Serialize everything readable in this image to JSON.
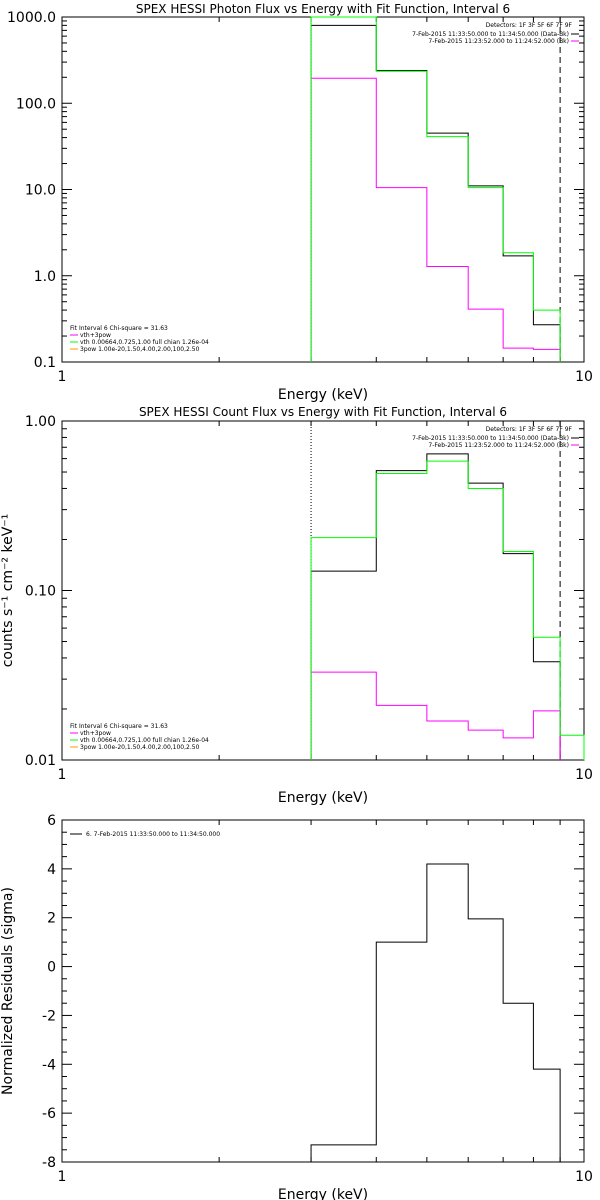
{
  "chart_data": [
    {
      "type": "line",
      "title": "SPEX HESSI Photon Flux vs Energy with Fit Function, Interval 6",
      "xlabel": "Energy (keV)",
      "ylabel": "",
      "xscale": "log",
      "yscale": "log",
      "xlim": [
        1,
        10
      ],
      "ylim": [
        0.1,
        1000
      ],
      "xtick_labels": [
        "1",
        "10"
      ],
      "ytick_labels": [
        "1000.0",
        "100.0",
        "10.0",
        "1.0",
        "0.1"
      ],
      "detectors_text": "Detectors: 1F 3F 5F 6F 7F 9F",
      "legend_right": [
        "7-Feb-2015 11:33:50.000 to 11:34:50.000 (Data-Bk)",
        "7-Feb-2015 11:23:52.000 to 11:24:52.000 (Bk)"
      ],
      "legend_left": [
        "Fit Interval 6   Chi-square = 31.63",
        "vth+3pow",
        "vth 0.00664,0.725,1.00  full chian 1.26e-04",
        "3pow 1.00e-20,1.50,4.00,2.00,100,2.50"
      ],
      "fit_range": [
        3,
        9
      ],
      "series": [
        {
          "name": "Data-Bk",
          "color": "#000000",
          "edges": [
            3,
            4,
            5,
            6,
            7,
            8,
            9
          ],
          "values": [
            800,
            240,
            45,
            11,
            1.7,
            0.27
          ]
        },
        {
          "name": "Bk",
          "color": "#ff00ff",
          "edges": [
            3,
            4,
            5,
            6,
            7,
            8,
            9
          ],
          "values": [
            195,
            10.5,
            1.28,
            0.41,
            0.145,
            0.14
          ]
        },
        {
          "name": "vth+3pow",
          "color": "#00ff00",
          "edges": [
            3,
            4,
            5,
            6,
            7,
            8,
            9
          ],
          "values": [
            1000,
            235,
            41,
            10.5,
            1.85,
            0.4
          ]
        }
      ]
    },
    {
      "type": "line",
      "title": "SPEX HESSI Count Flux vs Energy with Fit Function, Interval 6",
      "xlabel": "Energy (keV)",
      "ylabel": "counts s⁻¹ cm⁻² keV⁻¹",
      "xscale": "log",
      "yscale": "log",
      "xlim": [
        1,
        10
      ],
      "ylim": [
        0.01,
        1.0
      ],
      "xtick_labels": [
        "1",
        "10"
      ],
      "ytick_labels": [
        "1.00",
        "0.10",
        "0.01"
      ],
      "detectors_text": "Detectors: 1F 3F 5F 6F 7F 9F",
      "legend_right": [
        "7-Feb-2015 11:33:50.000 to 11:34:50.000 (Data-Bk)",
        "7-Feb-2015 11:23:52.000 to 11:24:52.000 (Bk)"
      ],
      "legend_left": [
        "Fit Interval 6   Chi-square = 31.63",
        "vth+3pow",
        "vth 0.00664,0.725,1.00  full chian 1.26e-04",
        "3pow 1.00e-20,1.50,4.00,2.00,100,2.50"
      ],
      "fit_range": [
        3,
        9
      ],
      "series": [
        {
          "name": "Data-Bk",
          "color": "#000000",
          "edges": [
            3,
            4,
            5,
            6,
            7,
            8,
            9
          ],
          "values": [
            0.13,
            0.51,
            0.64,
            0.43,
            0.165,
            0.038
          ]
        },
        {
          "name": "Bk",
          "color": "#ff00ff",
          "edges": [
            3,
            4,
            5,
            6,
            7,
            8,
            9
          ],
          "values": [
            0.033,
            0.021,
            0.017,
            0.015,
            0.0135,
            0.0195
          ]
        },
        {
          "name": "vth+3pow",
          "color": "#00ff00",
          "edges": [
            3,
            4,
            5,
            6,
            7,
            8,
            9,
            10
          ],
          "values": [
            0.205,
            0.49,
            0.58,
            0.4,
            0.17,
            0.053,
            0.014
          ]
        }
      ]
    },
    {
      "type": "line",
      "title": "",
      "xlabel": "Energy (keV)",
      "ylabel": "Normalized Residuals (sigma)",
      "xscale": "log",
      "yscale": "linear",
      "xlim": [
        1,
        10
      ],
      "ylim": [
        -8,
        6
      ],
      "xtick_labels": [
        "1",
        "10"
      ],
      "ytick_labels": [
        "6",
        "4",
        "2",
        "0",
        "-2",
        "-4",
        "-6",
        "-8"
      ],
      "legend_left": [
        "6.  7-Feb-2015 11:33:50.000 to 11:34:50.000"
      ],
      "series": [
        {
          "name": "",
          "color": "#000000",
          "edges": [
            3,
            4,
            5,
            6,
            7,
            8,
            9
          ],
          "values": [
            -7.3,
            1.0,
            4.2,
            1.95,
            -1.5,
            -4.2
          ]
        }
      ]
    }
  ]
}
